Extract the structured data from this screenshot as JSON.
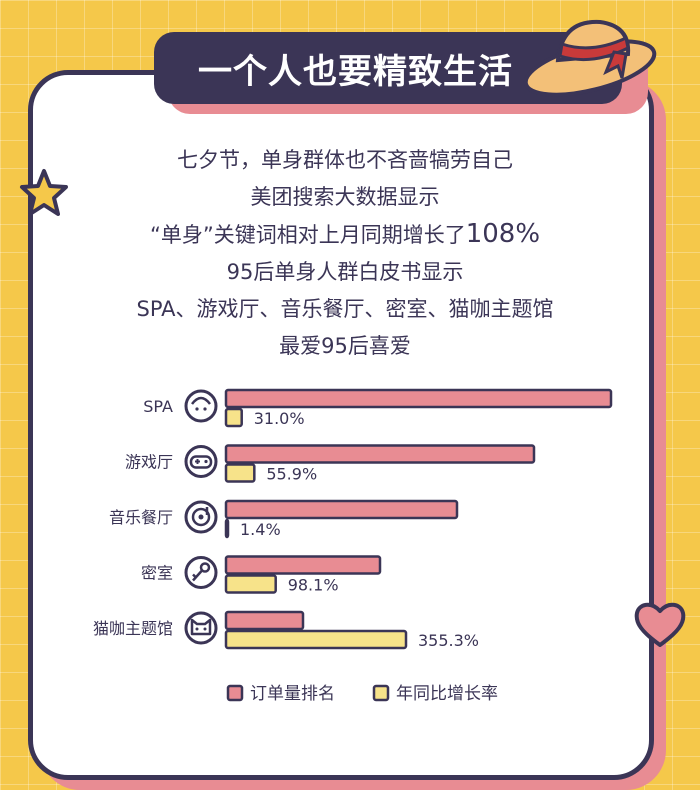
{
  "title": "一个人也要精致生活",
  "description": {
    "line1": "七夕节，单身群体也不吝啬犒劳自己",
    "line2": "美团搜索大数据显示",
    "line3_text": "“单身”关键词相对上月同期增长了",
    "line3_value": "108%",
    "line4": "95后单身人群白皮书显示",
    "line5": "SPA、游戏厅、音乐餐厅、密室、猫咖主题馆",
    "line6": "最爱95后喜爱"
  },
  "chart_data": {
    "type": "bar",
    "categories": [
      "SPA",
      "游戏厅",
      "音乐餐厅",
      "密室",
      "猫咖主题馆"
    ],
    "series": [
      {
        "name": "订单量排名",
        "values": [
          5,
          4,
          3,
          2,
          1
        ],
        "color": "#e88c93"
      },
      {
        "name": "年同比增长率",
        "values": [
          31.0,
          55.9,
          1.4,
          98.1,
          355.3
        ],
        "color": "#f7e38a"
      }
    ],
    "value_labels": [
      "31.0%",
      "55.9%",
      "1.4%",
      "98.1%",
      "355.3%"
    ],
    "icons": [
      "face-mask-icon",
      "gamepad-icon",
      "music-disc-icon",
      "key-icon",
      "cat-icon"
    ],
    "legend_position": "bottom"
  },
  "colors": {
    "background": "#f5c84a",
    "dark": "#3b3556",
    "pink": "#e88c93",
    "yellow": "#f7e38a"
  }
}
